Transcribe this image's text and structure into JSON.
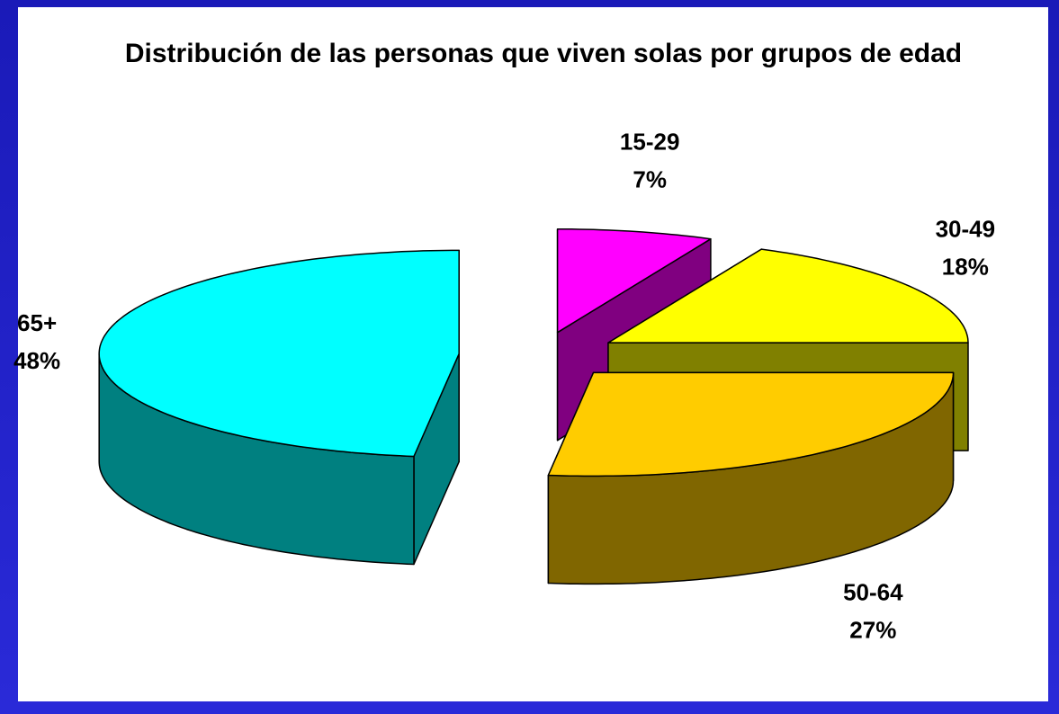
{
  "chart_data": {
    "type": "pie",
    "title": "Distribución de las personas que viven solas por grupos de edad",
    "categories": [
      "15-29",
      "30-49",
      "50-64",
      "65+"
    ],
    "values": [
      7,
      18,
      27,
      48
    ],
    "value_labels": [
      "7%",
      "18%",
      "27%",
      "48%"
    ],
    "colors": [
      "#ff00ff",
      "#ffff00",
      "#ffcc00",
      "#00ffff"
    ],
    "side_colors": [
      "#800080",
      "#808000",
      "#806600",
      "#008080"
    ]
  }
}
